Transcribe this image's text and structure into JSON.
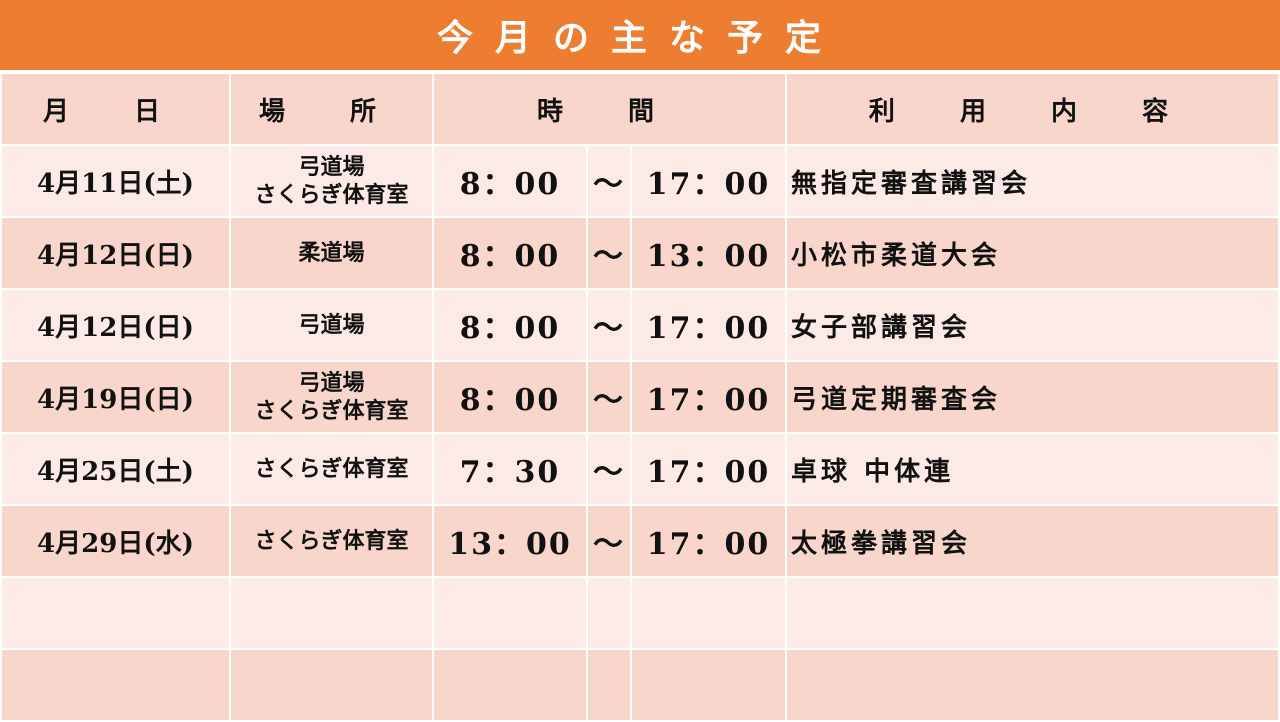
{
  "title": "今月の主な予定",
  "colors": {
    "title_bg": "#ED7D31",
    "row_light": "#FBEAE6",
    "row_dark": "#F8D6CC"
  },
  "headers": {
    "date": "月 日",
    "place": "場 所",
    "time": "時 間",
    "content": "利 用 内 容"
  },
  "rows": [
    {
      "date": "4月11日(土)",
      "place": [
        "弓道場",
        "さくらぎ体育室"
      ],
      "start": "8：00",
      "sep": "～",
      "end": "17：00",
      "content": "無指定審査講習会"
    },
    {
      "date": "4月12日(日)",
      "place": [
        "柔道場"
      ],
      "start": "8：00",
      "sep": "～",
      "end": "13：00",
      "content": "小松市柔道大会"
    },
    {
      "date": "4月12日(日)",
      "place": [
        "弓道場"
      ],
      "start": "8：00",
      "sep": "～",
      "end": "17：00",
      "content": "女子部講習会"
    },
    {
      "date": "4月19日(日)",
      "place": [
        "弓道場",
        "さくらぎ体育室"
      ],
      "start": "8：00",
      "sep": "～",
      "end": "17：00",
      "content": "弓道定期審査会"
    },
    {
      "date": "4月25日(土)",
      "place": [
        "さくらぎ体育室"
      ],
      "start": "7：30",
      "sep": "～",
      "end": "17：00",
      "content": "卓球 中体連"
    },
    {
      "date": "4月29日(水)",
      "place": [
        "さくらぎ体育室"
      ],
      "start": "13：00",
      "sep": "～",
      "end": "17：00",
      "content": "太極拳講習会"
    }
  ],
  "empty_rows": 2
}
